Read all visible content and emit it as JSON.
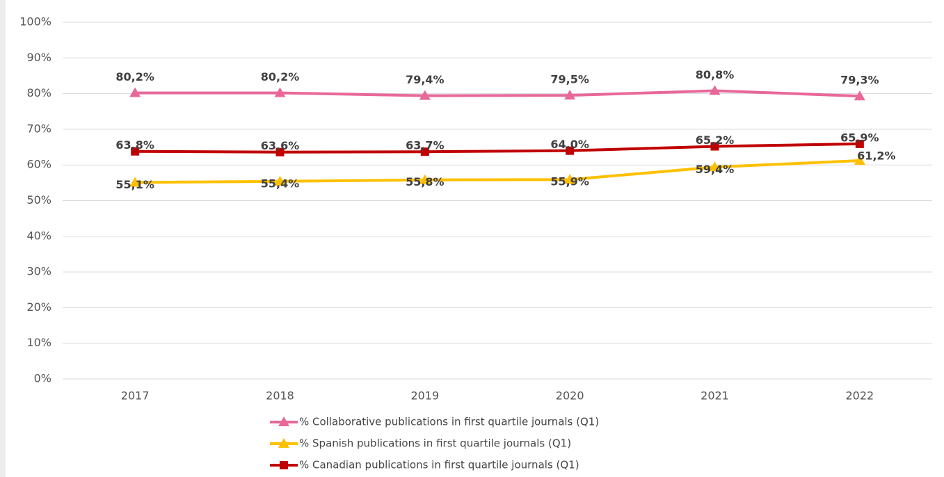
{
  "chart_data": {
    "type": "line",
    "categories": [
      "2017",
      "2018",
      "2019",
      "2020",
      "2021",
      "2022"
    ],
    "series": [
      {
        "name": "% Collaborative publications in first quartile journals (Q1)",
        "color": "#e8689a",
        "values": [
          80.2,
          80.2,
          79.4,
          79.5,
          80.8,
          79.3
        ],
        "value_labels": [
          "80,2%",
          "80,2%",
          "79,4%",
          "79,5%",
          "80,8%",
          "79,3%"
        ]
      },
      {
        "name": "% Spanish publications in first quartile journals (Q1)",
        "color": "#ffc000",
        "values": [
          55.1,
          55.4,
          55.8,
          55.9,
          59.4,
          61.2
        ],
        "value_labels": [
          "55,1%",
          "55,4%",
          "55,8%",
          "55,9%",
          "59,4%",
          "61,2%"
        ]
      },
      {
        "name": "% Canadian publications in first quartile journals (Q1)",
        "color": "#c00000",
        "values": [
          63.8,
          63.6,
          63.7,
          64.0,
          65.2,
          65.9
        ],
        "value_labels": [
          "63,8%",
          "63,6%",
          "63,7%",
          "64,0%",
          "65,2%",
          "65,9%"
        ]
      }
    ],
    "ylim": [
      0,
      100
    ],
    "yticks": [
      {
        "value": 0,
        "label": "0%"
      },
      {
        "value": 10,
        "label": "10%"
      },
      {
        "value": 20,
        "label": "20%"
      },
      {
        "value": 30,
        "label": "30%"
      },
      {
        "value": 40,
        "label": "40%"
      },
      {
        "value": 50,
        "label": "50%"
      },
      {
        "value": 60,
        "label": "60%"
      },
      {
        "value": 70,
        "label": "70%"
      },
      {
        "value": 80,
        "label": "80%"
      },
      {
        "value": 90,
        "label": "90%"
      },
      {
        "value": 100,
        "label": "100%"
      }
    ],
    "grid": true
  }
}
